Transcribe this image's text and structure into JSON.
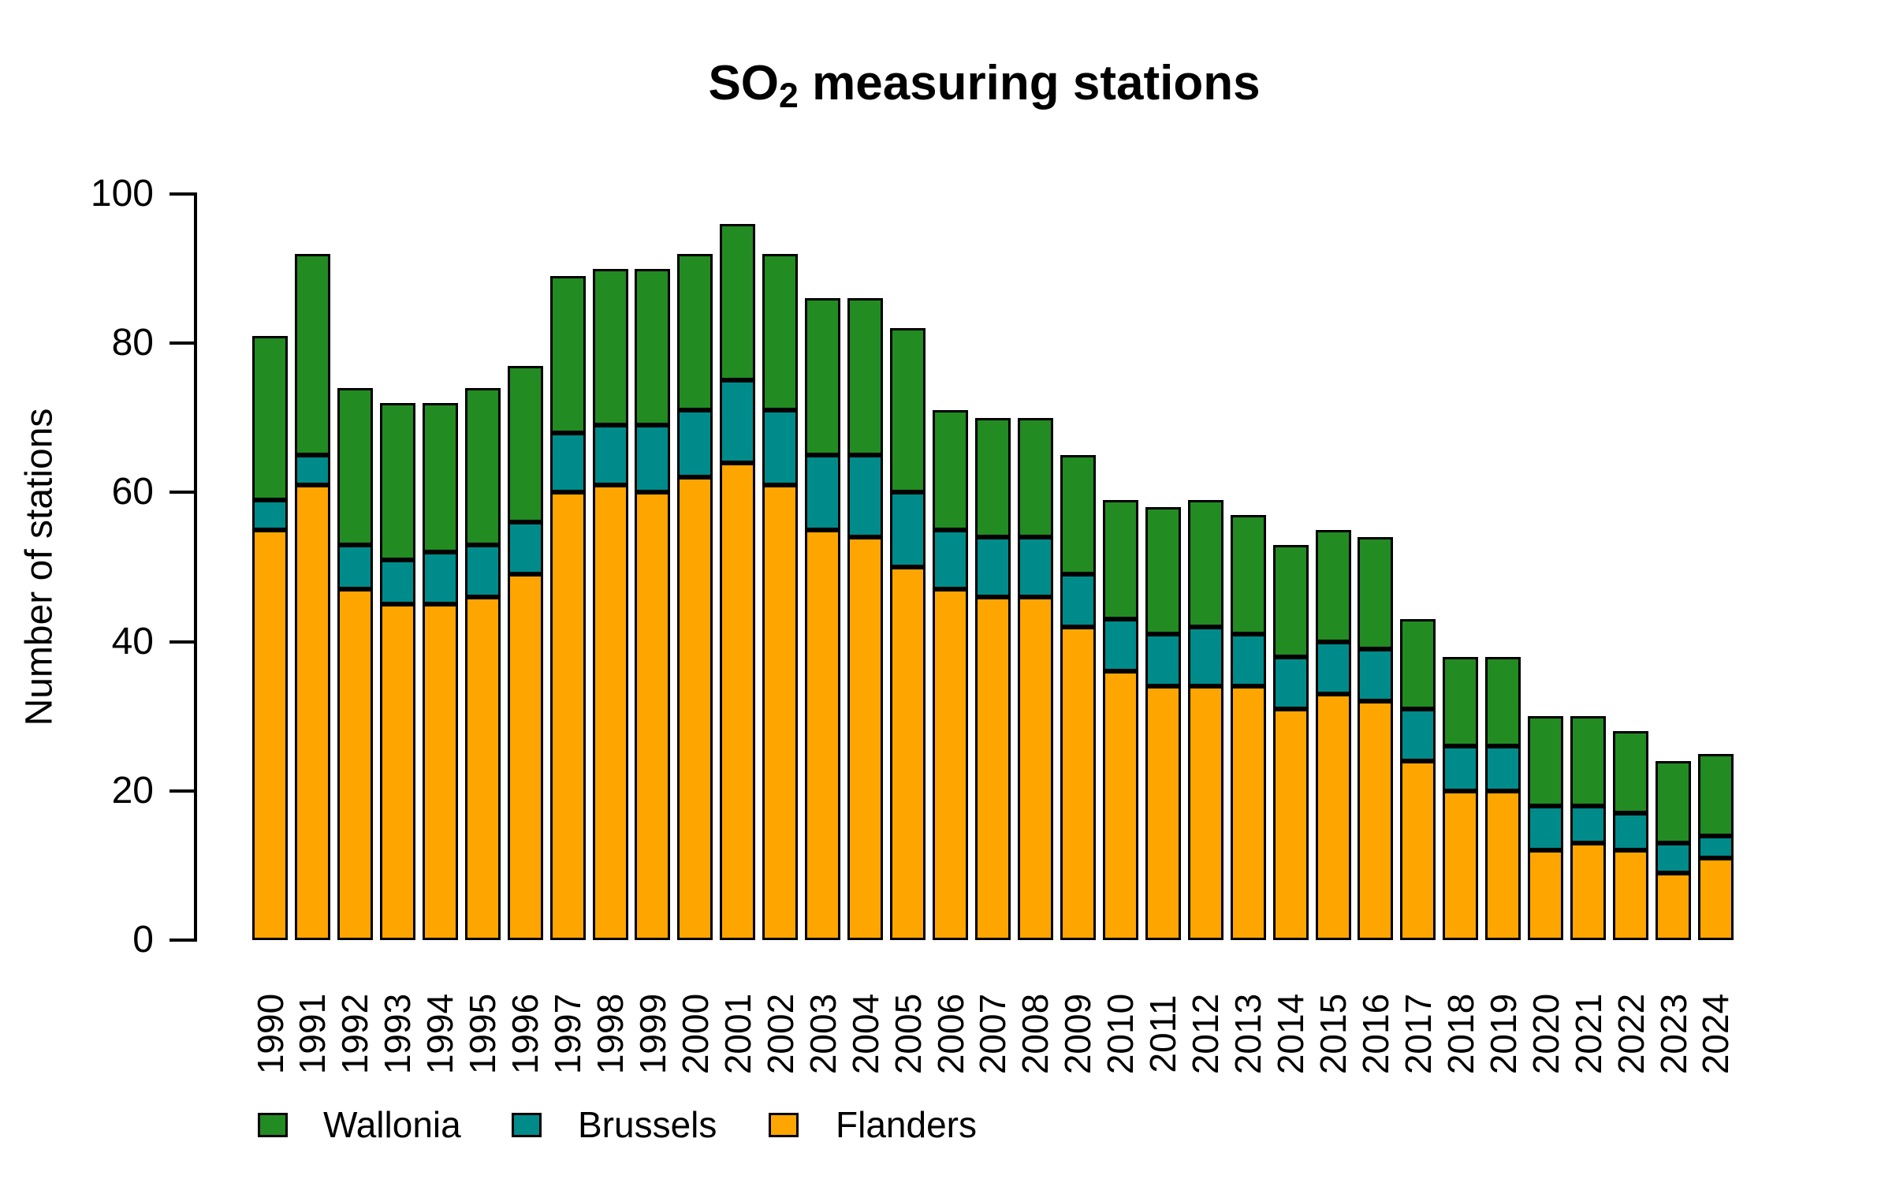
{
  "title": {
    "prefix": "SO",
    "subscript": "2",
    "suffix": " measuring stations"
  },
  "y_axis": {
    "label": "Number of stations",
    "ticks": [
      "0",
      "20",
      "40",
      "60",
      "80",
      "100"
    ],
    "tick_values": [
      0,
      20,
      40,
      60,
      80,
      100
    ]
  },
  "legend": {
    "items": [
      {
        "label": "Wallonia",
        "color": "#228B22"
      },
      {
        "label": "Brussels",
        "color": "#008B8B"
      },
      {
        "label": "Flanders",
        "color": "#FFA500"
      }
    ]
  },
  "chart_data": {
    "type": "bar",
    "stacked": true,
    "title": "SO2 measuring stations",
    "xlabel": "",
    "ylabel": "Number of stations",
    "ylim": [
      0,
      100
    ],
    "grid": false,
    "legend_position": "bottom",
    "categories": [
      "1990",
      "1991",
      "1992",
      "1993",
      "1994",
      "1995",
      "1996",
      "1997",
      "1998",
      "1999",
      "2000",
      "2001",
      "2002",
      "2003",
      "2004",
      "2005",
      "2006",
      "2007",
      "2008",
      "2009",
      "2010",
      "2011",
      "2012",
      "2013",
      "2014",
      "2015",
      "2016",
      "2017",
      "2018",
      "2019",
      "2020",
      "2021",
      "2022",
      "2023",
      "2024"
    ],
    "series": [
      {
        "name": "Flanders",
        "color": "#FFA500",
        "values": [
          55,
          61,
          47,
          45,
          45,
          46,
          49,
          60,
          61,
          60,
          62,
          64,
          61,
          55,
          54,
          50,
          47,
          46,
          46,
          42,
          36,
          34,
          34,
          34,
          31,
          33,
          32,
          24,
          20,
          20,
          12,
          13,
          12,
          9,
          11
        ]
      },
      {
        "name": "Brussels",
        "color": "#008B8B",
        "values": [
          4,
          4,
          6,
          6,
          7,
          7,
          7,
          8,
          8,
          9,
          9,
          11,
          10,
          10,
          11,
          10,
          8,
          8,
          8,
          7,
          7,
          7,
          8,
          7,
          7,
          7,
          7,
          7,
          6,
          6,
          6,
          5,
          5,
          4,
          3
        ]
      },
      {
        "name": "Wallonia",
        "color": "#228B22",
        "values": [
          22,
          27,
          21,
          21,
          20,
          21,
          21,
          21,
          21,
          21,
          21,
          21,
          21,
          21,
          21,
          22,
          16,
          16,
          16,
          16,
          16,
          17,
          17,
          16,
          15,
          15,
          15,
          12,
          12,
          12,
          12,
          12,
          11,
          11,
          11
        ]
      }
    ],
    "totals": [
      81,
      92,
      74,
      72,
      72,
      74,
      77,
      89,
      90,
      90,
      92,
      96,
      92,
      86,
      86,
      82,
      71,
      70,
      70,
      65,
      59,
      58,
      59,
      57,
      53,
      55,
      54,
      43,
      38,
      38,
      30,
      30,
      28,
      24,
      25
    ]
  }
}
